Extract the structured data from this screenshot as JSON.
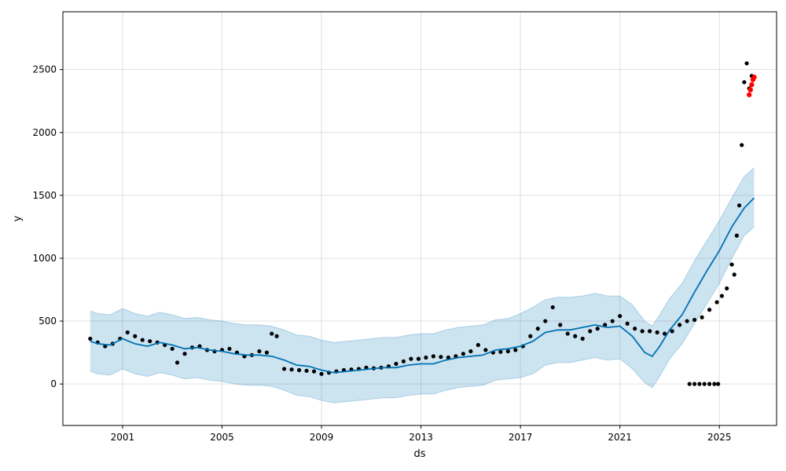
{
  "chart_data": {
    "type": "line",
    "xlabel": "ds",
    "ylabel": "y",
    "xlim": [
      1998.6,
      2027.3
    ],
    "ylim": [
      -330,
      2960
    ],
    "x_ticks": [
      2001,
      2005,
      2009,
      2013,
      2017,
      2021,
      2025
    ],
    "y_ticks": [
      0,
      500,
      1000,
      1500,
      2000,
      2500
    ],
    "grid": true,
    "colors": {
      "observed": "#000000",
      "forecast": "#0072B2",
      "interval_fill": "#0072B2",
      "future_points": "#ff0000"
    },
    "series": [
      {
        "kind": "observed-points",
        "x": [
          1999.7,
          2000.0,
          2000.3,
          2000.6,
          2000.9,
          2001.2,
          2001.5,
          2001.8,
          2002.1,
          2002.4,
          2002.7,
          2003.0,
          2003.2,
          2003.5,
          2003.8,
          2004.1,
          2004.4,
          2004.7,
          2005.0,
          2005.3,
          2005.6,
          2005.9,
          2006.2,
          2006.5,
          2006.8,
          2007.0,
          2007.2,
          2007.5,
          2007.8,
          2008.1,
          2008.4,
          2008.7,
          2009.0,
          2009.3,
          2009.6,
          2009.9,
          2010.2,
          2010.5,
          2010.8,
          2011.1,
          2011.4,
          2011.7,
          2012.0,
          2012.3,
          2012.6,
          2012.9,
          2013.2,
          2013.5,
          2013.8,
          2014.1,
          2014.4,
          2014.7,
          2015.0,
          2015.3,
          2015.6,
          2015.9,
          2016.2,
          2016.5,
          2016.8,
          2017.1,
          2017.4,
          2017.7,
          2018.0,
          2018.3,
          2018.6,
          2018.9,
          2019.2,
          2019.5,
          2019.8,
          2020.1,
          2020.4,
          2020.7,
          2021.0,
          2021.3,
          2021.6,
          2021.9,
          2022.2,
          2022.5,
          2022.8,
          2023.1,
          2023.4,
          2023.7,
          2024.0,
          2024.3,
          2024.6,
          2024.9,
          2025.1,
          2025.3,
          2025.5,
          2025.6,
          2025.7,
          2025.8,
          2025.9,
          2026.0,
          2026.1,
          2026.2,
          2026.3
        ],
        "y": [
          360,
          330,
          300,
          320,
          360,
          410,
          380,
          350,
          340,
          330,
          310,
          280,
          170,
          240,
          290,
          300,
          270,
          260,
          270,
          280,
          250,
          220,
          230,
          260,
          250,
          400,
          380,
          120,
          115,
          110,
          105,
          100,
          80,
          90,
          100,
          110,
          115,
          120,
          130,
          125,
          130,
          140,
          160,
          180,
          200,
          200,
          210,
          220,
          215,
          210,
          220,
          240,
          260,
          310,
          270,
          250,
          255,
          260,
          270,
          300,
          380,
          440,
          500,
          610,
          470,
          400,
          380,
          360,
          420,
          440,
          470,
          500,
          540,
          480,
          440,
          420,
          420,
          410,
          400,
          420,
          470,
          500,
          510,
          530,
          590,
          650,
          700,
          760,
          950,
          870,
          1180,
          1420,
          1900,
          2400,
          2550,
          2350,
          2450
        ]
      },
      {
        "kind": "observed-zero-outliers",
        "x": [
          2023.8,
          2024.0,
          2024.2,
          2024.4,
          2024.6,
          2024.8,
          2024.95
        ],
        "y": [
          0,
          0,
          0,
          0,
          0,
          0,
          0
        ]
      },
      {
        "kind": "future-points",
        "x": [
          2026.2,
          2026.25,
          2026.3,
          2026.35,
          2026.4
        ],
        "y": [
          2300,
          2340,
          2380,
          2420,
          2440
        ]
      },
      {
        "kind": "forecast",
        "x": [
          1999.7,
          2000.0,
          2000.5,
          2001.0,
          2001.5,
          2002.0,
          2002.5,
          2003.0,
          2003.5,
          2004.0,
          2004.5,
          2005.0,
          2005.5,
          2006.0,
          2006.5,
          2007.0,
          2007.5,
          2008.0,
          2008.5,
          2009.0,
          2009.5,
          2010.0,
          2010.5,
          2011.0,
          2011.5,
          2012.0,
          2012.5,
          2013.0,
          2013.5,
          2014.0,
          2014.5,
          2015.0,
          2015.5,
          2016.0,
          2016.5,
          2017.0,
          2017.5,
          2018.0,
          2018.5,
          2019.0,
          2019.5,
          2020.0,
          2020.5,
          2021.0,
          2021.5,
          2022.0,
          2022.3,
          2022.6,
          2023.0,
          2023.5,
          2024.0,
          2024.5,
          2025.0,
          2025.5,
          2026.0,
          2026.4
        ],
        "y": [
          340,
          320,
          310,
          360,
          320,
          300,
          330,
          310,
          280,
          290,
          270,
          260,
          240,
          230,
          230,
          220,
          190,
          150,
          140,
          110,
          90,
          100,
          110,
          120,
          130,
          130,
          150,
          160,
          160,
          190,
          210,
          220,
          230,
          270,
          280,
          300,
          340,
          410,
          430,
          430,
          450,
          470,
          450,
          460,
          380,
          250,
          220,
          300,
          430,
          550,
          730,
          900,
          1060,
          1250,
          1400,
          1480
        ]
      },
      {
        "kind": "interval-upper",
        "x": [
          1999.7,
          2000.0,
          2000.5,
          2001.0,
          2001.5,
          2002.0,
          2002.5,
          2003.0,
          2003.5,
          2004.0,
          2004.5,
          2005.0,
          2005.5,
          2006.0,
          2006.5,
          2007.0,
          2007.5,
          2008.0,
          2008.5,
          2009.0,
          2009.5,
          2010.0,
          2010.5,
          2011.0,
          2011.5,
          2012.0,
          2012.5,
          2013.0,
          2013.5,
          2014.0,
          2014.5,
          2015.0,
          2015.5,
          2016.0,
          2016.5,
          2017.0,
          2017.5,
          2018.0,
          2018.5,
          2019.0,
          2019.5,
          2020.0,
          2020.5,
          2021.0,
          2021.5,
          2022.0,
          2022.3,
          2022.6,
          2023.0,
          2023.5,
          2024.0,
          2024.5,
          2025.0,
          2025.5,
          2026.0,
          2026.4
        ],
        "y": [
          580,
          560,
          550,
          600,
          560,
          540,
          570,
          550,
          520,
          530,
          510,
          500,
          480,
          470,
          470,
          460,
          430,
          390,
          380,
          350,
          330,
          340,
          350,
          360,
          370,
          370,
          390,
          400,
          400,
          430,
          450,
          460,
          470,
          510,
          520,
          560,
          610,
          670,
          690,
          690,
          700,
          720,
          700,
          700,
          630,
          500,
          460,
          550,
          680,
          800,
          980,
          1140,
          1300,
          1480,
          1650,
          1720
        ]
      },
      {
        "kind": "interval-lower",
        "x": [
          1999.7,
          2000.0,
          2000.5,
          2001.0,
          2001.5,
          2002.0,
          2002.5,
          2003.0,
          2003.5,
          2004.0,
          2004.5,
          2005.0,
          2005.5,
          2006.0,
          2006.5,
          2007.0,
          2007.5,
          2008.0,
          2008.5,
          2009.0,
          2009.5,
          2010.0,
          2010.5,
          2011.0,
          2011.5,
          2012.0,
          2012.5,
          2013.0,
          2013.5,
          2014.0,
          2014.5,
          2015.0,
          2015.5,
          2016.0,
          2016.5,
          2017.0,
          2017.5,
          2018.0,
          2018.5,
          2019.0,
          2019.5,
          2020.0,
          2020.5,
          2021.0,
          2021.5,
          2022.0,
          2022.3,
          2022.6,
          2023.0,
          2023.5,
          2024.0,
          2024.5,
          2025.0,
          2025.5,
          2026.0,
          2026.4
        ],
        "y": [
          100,
          80,
          70,
          120,
          80,
          60,
          90,
          70,
          40,
          50,
          30,
          20,
          0,
          -10,
          -10,
          -20,
          -50,
          -90,
          -100,
          -130,
          -150,
          -140,
          -130,
          -120,
          -110,
          -110,
          -90,
          -80,
          -80,
          -50,
          -30,
          -20,
          -10,
          30,
          40,
          50,
          80,
          150,
          170,
          170,
          190,
          210,
          190,
          200,
          120,
          10,
          -30,
          60,
          200,
          320,
          480,
          640,
          800,
          1000,
          1180,
          1250
        ]
      }
    ]
  }
}
